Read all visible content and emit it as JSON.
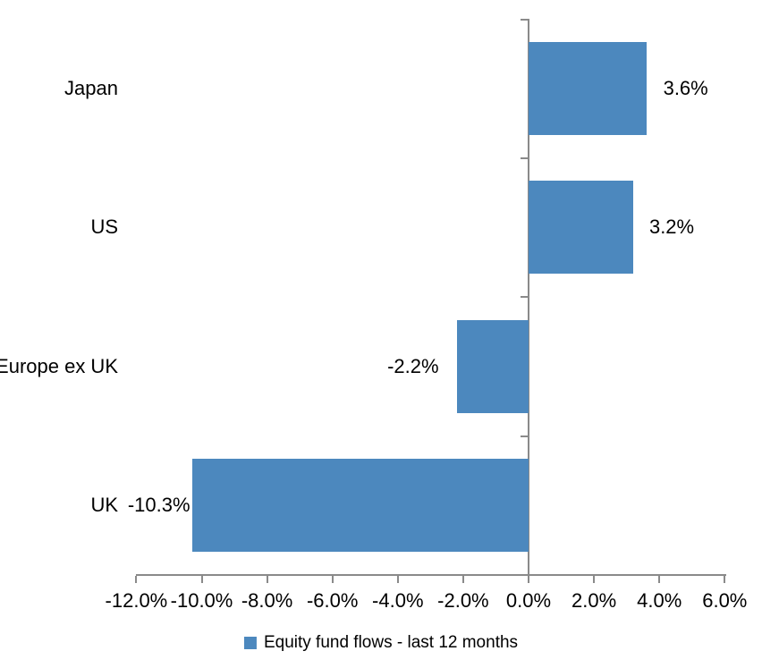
{
  "chart_data": {
    "type": "bar",
    "orientation": "horizontal",
    "title": "",
    "categories": [
      "Japan",
      "US",
      "Europe ex UK",
      "UK"
    ],
    "values": [
      3.6,
      3.2,
      -2.2,
      -10.3
    ],
    "value_labels": [
      "3.6%",
      "3.2%",
      "-2.2%",
      "-10.3%"
    ],
    "x_ticks": [
      -12,
      -10,
      -8,
      -6,
      -4,
      -2,
      0,
      2,
      4,
      6
    ],
    "x_tick_labels": [
      "-12.0%",
      "-10.0%",
      "-8.0%",
      "-6.0%",
      "-4.0%",
      "-2.0%",
      "0.0%",
      "2.0%",
      "4.0%",
      "6.0%"
    ],
    "xlim": [
      -12,
      6
    ],
    "grid": false,
    "legend_position": "bottom",
    "legend_label": "Equity fund flows - last 12 months",
    "colors": {
      "bar": "#4C88BE",
      "axis": "#8A8A8A",
      "text": "#000000",
      "background": "#FFFFFF"
    }
  }
}
